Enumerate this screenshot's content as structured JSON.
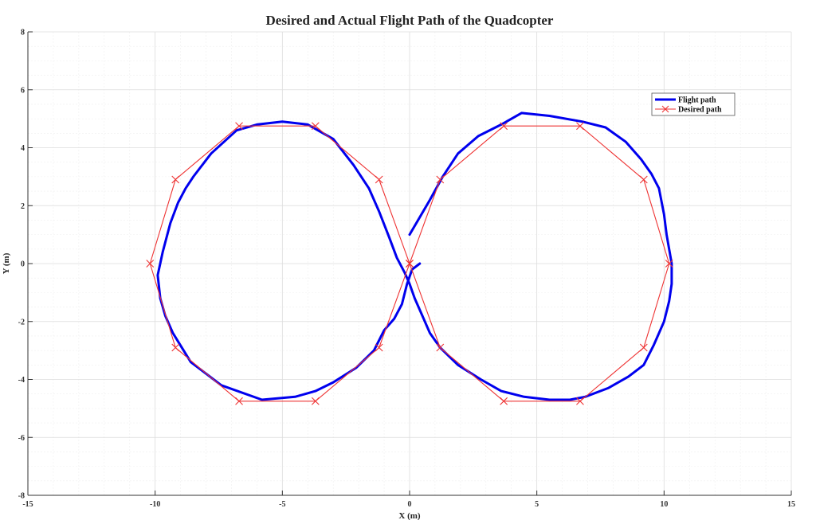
{
  "chart_data": {
    "type": "line",
    "title": "Desired and Actual Flight Path of the Quadcopter",
    "xlabel": "X (m)",
    "ylabel": "Y (m)",
    "xlim": [
      -15,
      15
    ],
    "ylim": [
      -8,
      8
    ],
    "xticks": [
      -15,
      -10,
      -5,
      0,
      5,
      10,
      15
    ],
    "yticks": [
      -8,
      -6,
      -4,
      -2,
      0,
      2,
      4,
      6,
      8
    ],
    "grid": true,
    "legend_position": "top-right",
    "series": [
      {
        "name": "Flight path",
        "color": "#0000ee",
        "style": "solid-thick",
        "x": [
          0,
          0.4,
          0.8,
          1.3,
          1.9,
          2.7,
          3.6,
          4.4,
          5.5,
          6.8,
          7.7,
          8.5,
          9.1,
          9.5,
          9.8,
          10.0,
          10.1,
          10.2,
          10.3,
          10.3,
          10.2,
          10.0,
          9.6,
          9.2,
          8.6,
          7.8,
          6.9,
          6.3,
          5.5,
          4.5,
          3.6,
          2.8,
          1.9,
          1.2,
          0.8,
          0.5,
          0.2,
          0,
          -0.2,
          -0.5,
          -0.8,
          -1.2,
          -1.6,
          -2.2,
          -3.0,
          -4.0,
          -5.0,
          -6.0,
          -6.8,
          -7.8,
          -8.5,
          -8.8,
          -9.1,
          -9.4,
          -9.7,
          -9.9,
          -9.8,
          -9.6,
          -9.3,
          -8.6,
          -7.4,
          -5.8,
          -4.5,
          -3.7,
          -3.0,
          -2.1,
          -1.4,
          -1.0,
          -0.6,
          -0.3,
          -0.1,
          0.1,
          0.4
        ],
        "y": [
          1.0,
          1.6,
          2.2,
          3.0,
          3.8,
          4.4,
          4.8,
          5.2,
          5.1,
          4.9,
          4.7,
          4.2,
          3.6,
          3.1,
          2.6,
          1.7,
          1.0,
          0.5,
          0.0,
          -0.7,
          -1.3,
          -2.0,
          -2.8,
          -3.5,
          -3.9,
          -4.3,
          -4.6,
          -4.7,
          -4.7,
          -4.6,
          -4.4,
          -4.0,
          -3.5,
          -2.9,
          -2.4,
          -1.8,
          -1.2,
          -0.7,
          -0.3,
          0.2,
          0.9,
          1.8,
          2.6,
          3.4,
          4.3,
          4.8,
          4.9,
          4.8,
          4.6,
          3.8,
          3.0,
          2.6,
          2.1,
          1.4,
          0.4,
          -0.4,
          -1.2,
          -1.8,
          -2.4,
          -3.4,
          -4.2,
          -4.7,
          -4.6,
          -4.4,
          -4.1,
          -3.6,
          -3.0,
          -2.3,
          -1.9,
          -1.4,
          -0.7,
          -0.2,
          0.0
        ]
      },
      {
        "name": "Desired path",
        "color": "#ee3333",
        "style": "thin-x-markers",
        "x": [
          0,
          1.2,
          3.7,
          6.7,
          9.2,
          10.2,
          9.2,
          6.7,
          3.7,
          1.2,
          0,
          -1.2,
          -3.7,
          -6.7,
          -9.2,
          -10.2,
          -9.2,
          -6.7,
          -3.7,
          -1.2,
          0
        ],
        "y": [
          0,
          2.9,
          4.75,
          4.75,
          2.9,
          0,
          -2.9,
          -4.75,
          -4.75,
          -2.9,
          0,
          2.9,
          4.75,
          4.75,
          2.9,
          0,
          -2.9,
          -4.75,
          -4.75,
          -2.9,
          0
        ]
      }
    ]
  }
}
